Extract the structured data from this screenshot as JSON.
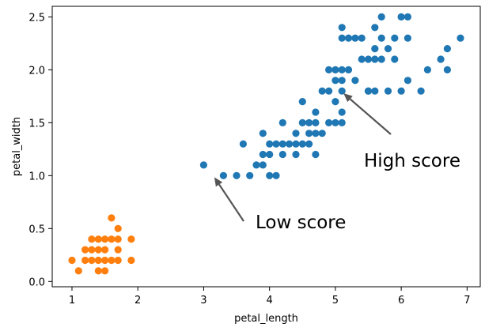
{
  "chart_data": {
    "type": "scatter",
    "xlabel": "petal_length",
    "ylabel": "petal_width",
    "xlim": [
      0.7,
      7.2
    ],
    "ylim": [
      -0.05,
      2.6
    ],
    "xticks": [
      "1",
      "2",
      "3",
      "4",
      "5",
      "6",
      "7"
    ],
    "yticks": [
      "0.0",
      "0.5",
      "1.0",
      "1.5",
      "2.0",
      "2.5"
    ],
    "grid": false,
    "legend": "none",
    "series": [
      {
        "color": "#ff7f0e",
        "points": [
          [
            1.0,
            0.2
          ],
          [
            1.1,
            0.1
          ],
          [
            1.2,
            0.2
          ],
          [
            1.3,
            0.2
          ],
          [
            1.3,
            0.3
          ],
          [
            1.3,
            0.4
          ],
          [
            1.4,
            0.1
          ],
          [
            1.4,
            0.2
          ],
          [
            1.4,
            0.3
          ],
          [
            1.4,
            0.4
          ],
          [
            1.5,
            0.1
          ],
          [
            1.5,
            0.2
          ],
          [
            1.5,
            0.3
          ],
          [
            1.5,
            0.4
          ],
          [
            1.6,
            0.2
          ],
          [
            1.6,
            0.4
          ],
          [
            1.6,
            0.6
          ],
          [
            1.7,
            0.2
          ],
          [
            1.7,
            0.3
          ],
          [
            1.7,
            0.4
          ],
          [
            1.7,
            0.5
          ],
          [
            1.9,
            0.2
          ],
          [
            1.9,
            0.4
          ],
          [
            1.2,
            0.3
          ]
        ]
      },
      {
        "color": "#1f77b4",
        "points": [
          [
            3.0,
            1.1
          ],
          [
            3.3,
            1.0
          ],
          [
            3.5,
            1.0
          ],
          [
            3.7,
            1.0
          ],
          [
            3.6,
            1.3
          ],
          [
            3.8,
            1.1
          ],
          [
            3.9,
            1.1
          ],
          [
            3.9,
            1.2
          ],
          [
            3.9,
            1.4
          ],
          [
            4.0,
            1.0
          ],
          [
            4.0,
            1.2
          ],
          [
            4.0,
            1.3
          ],
          [
            4.1,
            1.0
          ],
          [
            4.1,
            1.3
          ],
          [
            4.2,
            1.2
          ],
          [
            4.2,
            1.3
          ],
          [
            4.2,
            1.5
          ],
          [
            4.3,
            1.3
          ],
          [
            4.4,
            1.2
          ],
          [
            4.4,
            1.3
          ],
          [
            4.4,
            1.4
          ],
          [
            4.5,
            1.3
          ],
          [
            4.5,
            1.5
          ],
          [
            4.5,
            1.7
          ],
          [
            4.6,
            1.3
          ],
          [
            4.6,
            1.4
          ],
          [
            4.6,
            1.5
          ],
          [
            4.7,
            1.2
          ],
          [
            4.7,
            1.4
          ],
          [
            4.7,
            1.5
          ],
          [
            4.7,
            1.6
          ],
          [
            4.8,
            1.4
          ],
          [
            4.8,
            1.8
          ],
          [
            4.9,
            1.5
          ],
          [
            4.9,
            1.8
          ],
          [
            4.9,
            2.0
          ],
          [
            5.0,
            1.5
          ],
          [
            5.0,
            1.7
          ],
          [
            5.0,
            1.9
          ],
          [
            5.0,
            2.0
          ],
          [
            5.1,
            1.5
          ],
          [
            5.1,
            1.6
          ],
          [
            5.1,
            1.8
          ],
          [
            5.1,
            1.9
          ],
          [
            5.1,
            2.0
          ],
          [
            5.1,
            2.3
          ],
          [
            5.1,
            2.4
          ],
          [
            5.2,
            2.0
          ],
          [
            5.2,
            2.3
          ],
          [
            5.3,
            1.9
          ],
          [
            5.3,
            2.3
          ],
          [
            5.4,
            2.1
          ],
          [
            5.4,
            2.3
          ],
          [
            5.5,
            1.8
          ],
          [
            5.5,
            2.1
          ],
          [
            5.5,
            1.8
          ],
          [
            5.6,
            1.8
          ],
          [
            5.6,
            2.1
          ],
          [
            5.6,
            2.2
          ],
          [
            5.6,
            2.4
          ],
          [
            5.7,
            2.1
          ],
          [
            5.7,
            2.3
          ],
          [
            5.7,
            2.5
          ],
          [
            5.8,
            1.8
          ],
          [
            5.8,
            2.2
          ],
          [
            5.9,
            2.1
          ],
          [
            5.9,
            2.3
          ],
          [
            6.0,
            1.8
          ],
          [
            6.0,
            2.5
          ],
          [
            6.1,
            1.9
          ],
          [
            6.1,
            2.3
          ],
          [
            6.1,
            2.5
          ],
          [
            6.3,
            1.8
          ],
          [
            6.4,
            2.0
          ],
          [
            6.6,
            2.1
          ],
          [
            6.7,
            2.0
          ],
          [
            6.7,
            2.2
          ],
          [
            6.9,
            2.3
          ]
        ]
      }
    ],
    "annotations": [
      {
        "text": "High score",
        "point": [
          5.1,
          1.8
        ],
        "text_at": [
          5.4,
          1.32
        ]
      },
      {
        "text": "Low score",
        "point": [
          3.15,
          1.0
        ],
        "text_at": [
          3.55,
          0.6
        ]
      }
    ]
  }
}
